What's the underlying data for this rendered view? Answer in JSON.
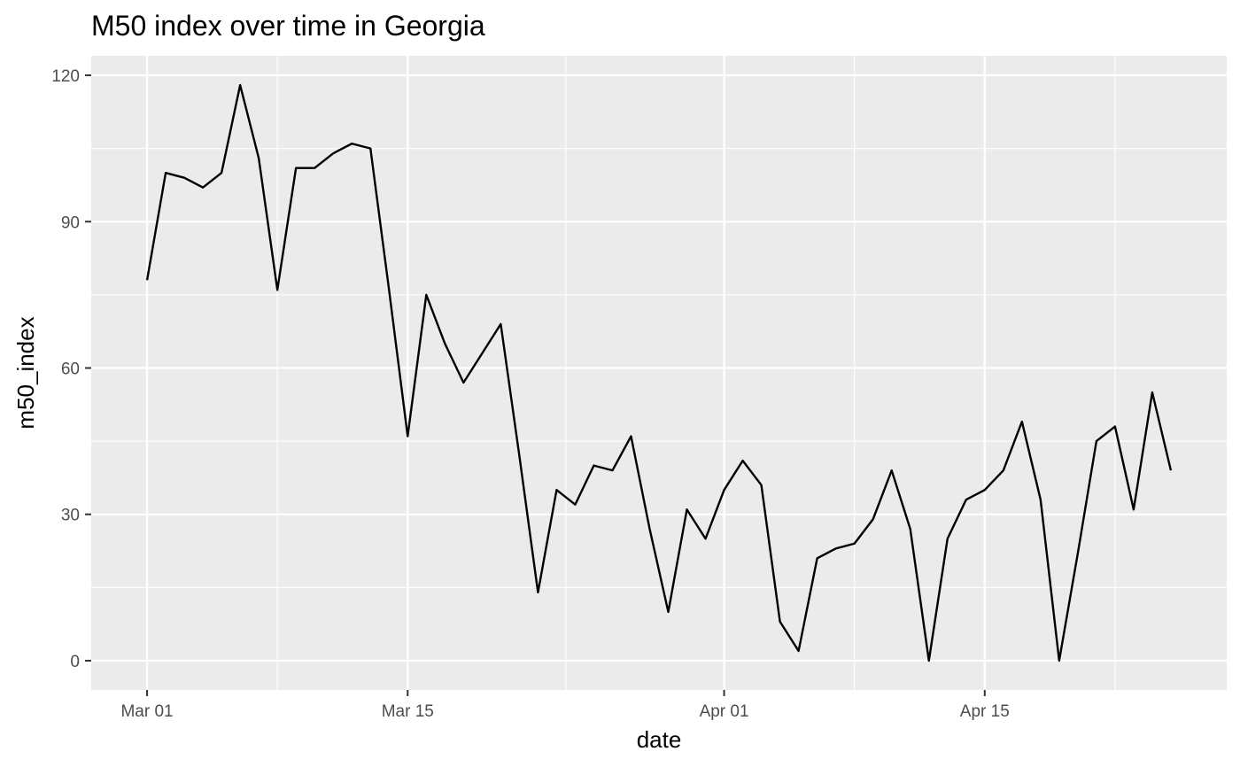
{
  "chart_data": {
    "type": "line",
    "title": "M50 index over time in Georgia",
    "xlabel": "date",
    "ylabel": "m50_index",
    "x_ticks": [
      {
        "date": "2020-03-01",
        "label": "Mar 01"
      },
      {
        "date": "2020-03-15",
        "label": "Mar 15"
      },
      {
        "date": "2020-04-01",
        "label": "Apr 01"
      },
      {
        "date": "2020-04-15",
        "label": "Apr 15"
      }
    ],
    "y_ticks": [
      0,
      30,
      60,
      90,
      120
    ],
    "xlim": [
      "2020-02-27",
      "2020-04-28"
    ],
    "ylim": [
      -6,
      124
    ],
    "grid": true,
    "background": "#ebebeb",
    "line_color": "#000000",
    "series": [
      {
        "x": [
          "2020-03-01",
          "2020-03-02",
          "2020-03-03",
          "2020-03-04",
          "2020-03-05",
          "2020-03-06",
          "2020-03-07",
          "2020-03-08",
          "2020-03-09",
          "2020-03-10",
          "2020-03-11",
          "2020-03-12",
          "2020-03-13",
          "2020-03-14",
          "2020-03-15",
          "2020-03-16",
          "2020-03-17",
          "2020-03-18",
          "2020-03-19",
          "2020-03-20",
          "2020-03-21",
          "2020-03-22",
          "2020-03-23",
          "2020-03-24",
          "2020-03-25",
          "2020-03-26",
          "2020-03-27",
          "2020-03-28",
          "2020-03-29",
          "2020-03-30",
          "2020-03-31",
          "2020-04-01",
          "2020-04-02",
          "2020-04-03",
          "2020-04-04",
          "2020-04-05",
          "2020-04-06",
          "2020-04-07",
          "2020-04-08",
          "2020-04-09",
          "2020-04-10",
          "2020-04-11",
          "2020-04-12",
          "2020-04-13",
          "2020-04-14",
          "2020-04-15",
          "2020-04-16",
          "2020-04-17",
          "2020-04-18",
          "2020-04-19",
          "2020-04-20",
          "2020-04-21",
          "2020-04-22",
          "2020-04-23",
          "2020-04-24",
          "2020-04-25"
        ],
        "y": [
          78,
          100,
          99,
          97,
          100,
          118,
          103,
          76,
          101,
          101,
          104,
          106,
          105,
          76,
          46,
          75,
          65,
          57,
          63,
          69,
          42,
          14,
          35,
          32,
          40,
          39,
          46,
          27,
          10,
          31,
          25,
          35,
          41,
          36,
          8,
          2,
          21,
          23,
          24,
          29,
          39,
          27,
          0,
          25,
          33,
          35,
          39,
          49,
          33,
          0,
          22,
          45,
          48,
          31,
          55,
          39
        ]
      }
    ]
  }
}
